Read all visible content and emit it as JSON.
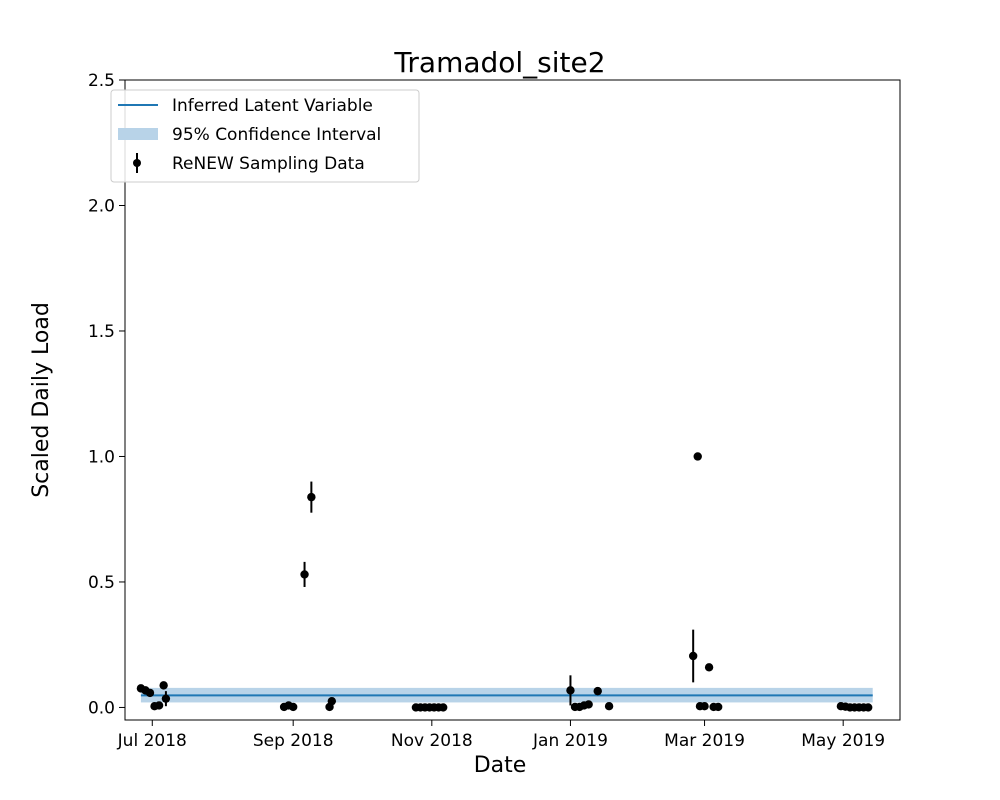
{
  "chart_data": {
    "type": "scatter",
    "title": "Tramadol_site2",
    "xlabel": "Date",
    "ylabel": "Scaled Daily Load",
    "xlim": [
      "2018-06-19",
      "2019-05-26"
    ],
    "ylim": [
      -0.05,
      2.5
    ],
    "x_ticks": [
      {
        "date": "2018-07-01",
        "label": "Jul 2018"
      },
      {
        "date": "2018-09-01",
        "label": "Sep 2018"
      },
      {
        "date": "2018-11-01",
        "label": "Nov 2018"
      },
      {
        "date": "2019-01-01",
        "label": "Jan 2019"
      },
      {
        "date": "2019-03-01",
        "label": "Mar 2019"
      },
      {
        "date": "2019-05-01",
        "label": "May 2019"
      }
    ],
    "y_ticks": [
      {
        "value": 0.0,
        "label": "0.0"
      },
      {
        "value": 0.5,
        "label": "0.5"
      },
      {
        "value": 1.0,
        "label": "1.0"
      },
      {
        "value": 1.5,
        "label": "1.5"
      },
      {
        "value": 2.0,
        "label": "2.0"
      },
      {
        "value": 2.5,
        "label": "2.5"
      }
    ],
    "legend": {
      "position": "top-left",
      "entries": [
        {
          "label": "Inferred Latent Variable",
          "kind": "line"
        },
        {
          "label": "95% Confidence Interval",
          "kind": "band"
        },
        {
          "label": "ReNEW Sampling Data",
          "kind": "errorbar"
        }
      ]
    },
    "latent_variable": {
      "x_start": "2018-06-26",
      "x_end": "2019-05-14",
      "mean": 0.048,
      "ci_lower": 0.02,
      "ci_upper": 0.078
    },
    "series": [
      {
        "name": "ReNEW Sampling Data",
        "points": [
          {
            "x": "2018-06-26",
            "y": 0.076
          },
          {
            "x": "2018-06-28",
            "y": 0.068
          },
          {
            "x": "2018-06-30",
            "y": 0.058
          },
          {
            "x": "2018-07-02",
            "y": 0.005
          },
          {
            "x": "2018-07-04",
            "y": 0.008
          },
          {
            "x": "2018-07-06",
            "y": 0.088
          },
          {
            "x": "2018-07-07",
            "y": 0.035,
            "err": 0.03
          },
          {
            "x": "2018-08-28",
            "y": 0.002
          },
          {
            "x": "2018-08-30",
            "y": 0.008
          },
          {
            "x": "2018-09-01",
            "y": 0.002
          },
          {
            "x": "2018-09-06",
            "y": 0.53,
            "err": 0.05
          },
          {
            "x": "2018-09-09",
            "y": 0.838,
            "err": 0.062
          },
          {
            "x": "2018-09-17",
            "y": 0.002
          },
          {
            "x": "2018-09-18",
            "y": 0.025
          },
          {
            "x": "2018-10-25",
            "y": 0.0
          },
          {
            "x": "2018-10-27",
            "y": 0.0
          },
          {
            "x": "2018-10-29",
            "y": 0.0
          },
          {
            "x": "2018-10-31",
            "y": 0.0
          },
          {
            "x": "2018-11-02",
            "y": 0.0
          },
          {
            "x": "2018-11-04",
            "y": 0.0
          },
          {
            "x": "2018-11-06",
            "y": 0.0
          },
          {
            "x": "2019-01-01",
            "y": 0.068,
            "err": 0.06
          },
          {
            "x": "2019-01-03",
            "y": 0.002
          },
          {
            "x": "2019-01-05",
            "y": 0.002
          },
          {
            "x": "2019-01-07",
            "y": 0.008
          },
          {
            "x": "2019-01-09",
            "y": 0.012
          },
          {
            "x": "2019-01-13",
            "y": 0.065
          },
          {
            "x": "2019-01-18",
            "y": 0.005
          },
          {
            "x": "2019-02-24",
            "y": 0.205,
            "err": 0.105
          },
          {
            "x": "2019-02-26",
            "y": 1.0
          },
          {
            "x": "2019-02-27",
            "y": 0.005
          },
          {
            "x": "2019-03-01",
            "y": 0.005
          },
          {
            "x": "2019-03-03",
            "y": 0.16
          },
          {
            "x": "2019-03-05",
            "y": 0.002
          },
          {
            "x": "2019-03-07",
            "y": 0.002
          },
          {
            "x": "2019-04-30",
            "y": 0.005
          },
          {
            "x": "2019-05-02",
            "y": 0.003
          },
          {
            "x": "2019-05-04",
            "y": 0.0
          },
          {
            "x": "2019-05-06",
            "y": 0.0
          },
          {
            "x": "2019-05-08",
            "y": 0.0
          },
          {
            "x": "2019-05-10",
            "y": 0.0
          },
          {
            "x": "2019-05-12",
            "y": 0.0
          }
        ]
      }
    ],
    "colors": {
      "latent_line": "#1f77b4",
      "ci_band": "#b8d3e8",
      "points": "#000000",
      "axes": "#000000",
      "legend_border": "#cccccc"
    }
  }
}
